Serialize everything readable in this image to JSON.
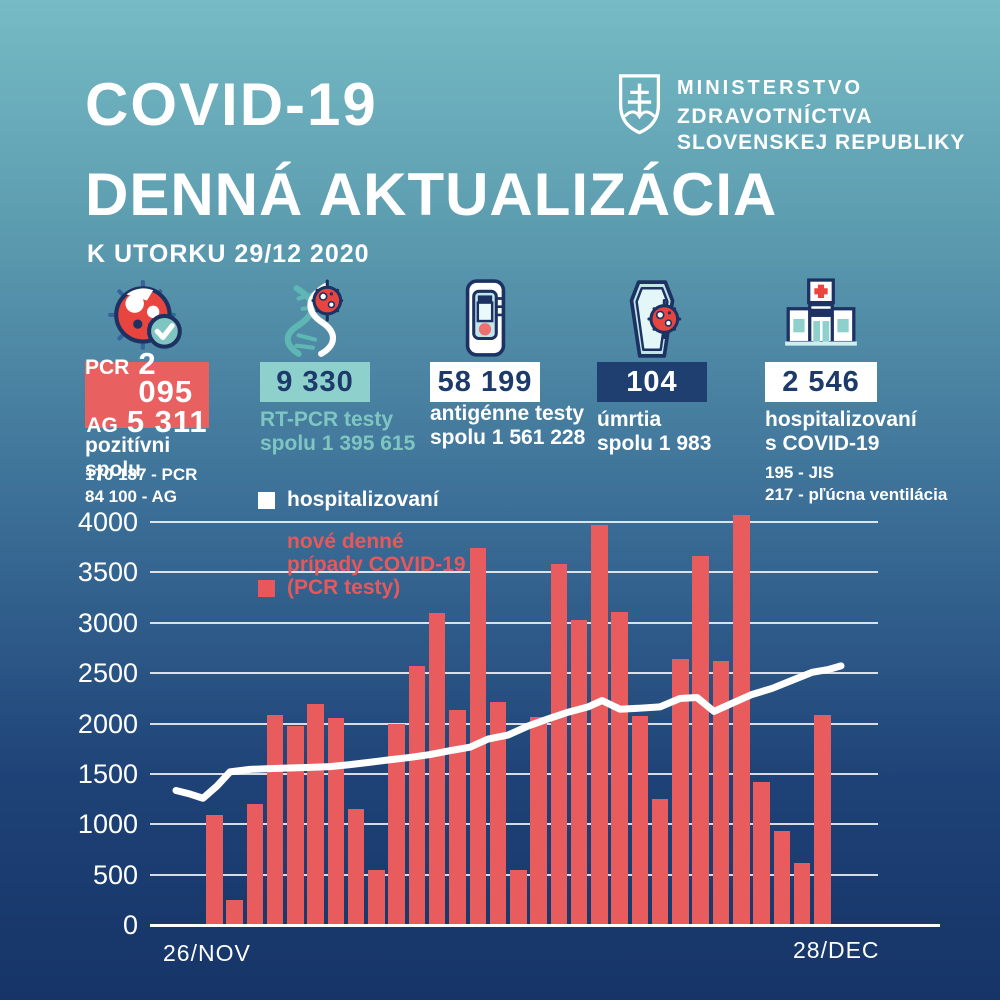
{
  "header": {
    "title_line1": "COVID-19",
    "title_line2": "DENNÁ AKTUALIZÁCIA",
    "subtitle": "K UTORKU 29/12 2020",
    "ministry": {
      "line1": "MINISTERSTVO",
      "line2": "ZDRAVOTNÍCTVA",
      "line3": "SLOVENSKEJ REPUBLIKY"
    }
  },
  "colors": {
    "red": "#e85c5e",
    "badge_red": "#e96060",
    "badge_teal": "#8ed0cb",
    "badge_navy": "#1e3f70",
    "teal_text": "#7fc5c1",
    "navy_text": "#1d3a6b",
    "white": "#ffffff"
  },
  "stats": [
    {
      "icon": "virus-check-icon",
      "badge": {
        "bg": "#e96060",
        "fg": "#ffffff",
        "rows": [
          {
            "label": "PCR",
            "value": "2 095"
          },
          {
            "label": "AG",
            "value": "5 311"
          }
        ]
      },
      "title": "pozitívni spolu",
      "details": [
        "170 187 - PCR",
        "84 100 - AG"
      ]
    },
    {
      "icon": "dna-virus-icon",
      "badge": {
        "bg": "#8ed0cb",
        "fg": "#1d3a6b",
        "value": "9 330"
      },
      "label_lines": [
        "RT-PCR testy",
        "spolu 1 395 615"
      ],
      "label_color": "#7fc5c1"
    },
    {
      "icon": "antigen-test-icon",
      "badge": {
        "bg": "#ffffff",
        "fg": "#1d3a6b",
        "value": "58 199"
      },
      "label_lines": [
        "antigénne testy",
        "spolu 1 561 228"
      ],
      "label_color": "#ffffff"
    },
    {
      "icon": "coffin-virus-icon",
      "badge": {
        "bg": "#1e3f70",
        "fg": "#ffffff",
        "value": "104"
      },
      "label_lines": [
        "úmrtia",
        "spolu 1 983"
      ],
      "label_color": "#ffffff"
    },
    {
      "icon": "hospital-icon",
      "badge": {
        "bg": "#ffffff",
        "fg": "#1d3a6b",
        "value": "2 546"
      },
      "label_lines": [
        "hospitalizovaní",
        "s COVID-19"
      ],
      "label_color": "#ffffff",
      "details": [
        "195 - JIS",
        "217 - pľúcna ventilácia"
      ]
    }
  ],
  "chart_data": {
    "type": "bar",
    "title": "",
    "xlabel": "",
    "ylabel": "",
    "ylim": [
      0,
      4000
    ],
    "yticks": [
      0,
      500,
      1000,
      1500,
      2000,
      2500,
      3000,
      3500,
      4000
    ],
    "grid": true,
    "x_start_label": "26/NOV",
    "x_end_label": "28/DEC",
    "legend": [
      {
        "label": "hospitalizovaní",
        "color": "#ffffff"
      },
      {
        "line1": "nové denné",
        "line2": "prípady COVID-19",
        "line3": "(PCR testy)",
        "color": "#e8575a"
      }
    ],
    "series": [
      {
        "name": "nové denné prípady COVID-19 (PCR testy)",
        "type": "bar",
        "color": "#e85c5e",
        "values": [
          1090,
          250,
          1200,
          2080,
          1980,
          2190,
          2050,
          1150,
          550,
          2000,
          2570,
          3100,
          2130,
          3740,
          2210,
          550,
          2060,
          3580,
          3030,
          3970,
          3110,
          2070,
          1250,
          2640,
          3660,
          2620,
          4070,
          1420,
          930,
          620,
          2080
        ]
      },
      {
        "name": "hospitalizovaní",
        "type": "line",
        "color": "#ffffff",
        "points": [
          [
            176,
            1335
          ],
          [
            190,
            1300
          ],
          [
            203,
            1258
          ],
          [
            217,
            1380
          ],
          [
            230,
            1520
          ],
          [
            250,
            1545
          ],
          [
            270,
            1552
          ],
          [
            290,
            1558
          ],
          [
            310,
            1565
          ],
          [
            330,
            1572
          ],
          [
            350,
            1592
          ],
          [
            370,
            1615
          ],
          [
            390,
            1640
          ],
          [
            410,
            1663
          ],
          [
            430,
            1692
          ],
          [
            450,
            1730
          ],
          [
            470,
            1765
          ],
          [
            488,
            1845
          ],
          [
            508,
            1885
          ],
          [
            528,
            1975
          ],
          [
            548,
            2045
          ],
          [
            568,
            2112
          ],
          [
            588,
            2165
          ],
          [
            602,
            2228
          ],
          [
            620,
            2142
          ],
          [
            640,
            2152
          ],
          [
            660,
            2165
          ],
          [
            680,
            2248
          ],
          [
            697,
            2258
          ],
          [
            714,
            2120
          ],
          [
            732,
            2200
          ],
          [
            752,
            2288
          ],
          [
            772,
            2348
          ],
          [
            792,
            2428
          ],
          [
            812,
            2508
          ],
          [
            828,
            2535
          ],
          [
            841,
            2572
          ]
        ]
      }
    ]
  }
}
